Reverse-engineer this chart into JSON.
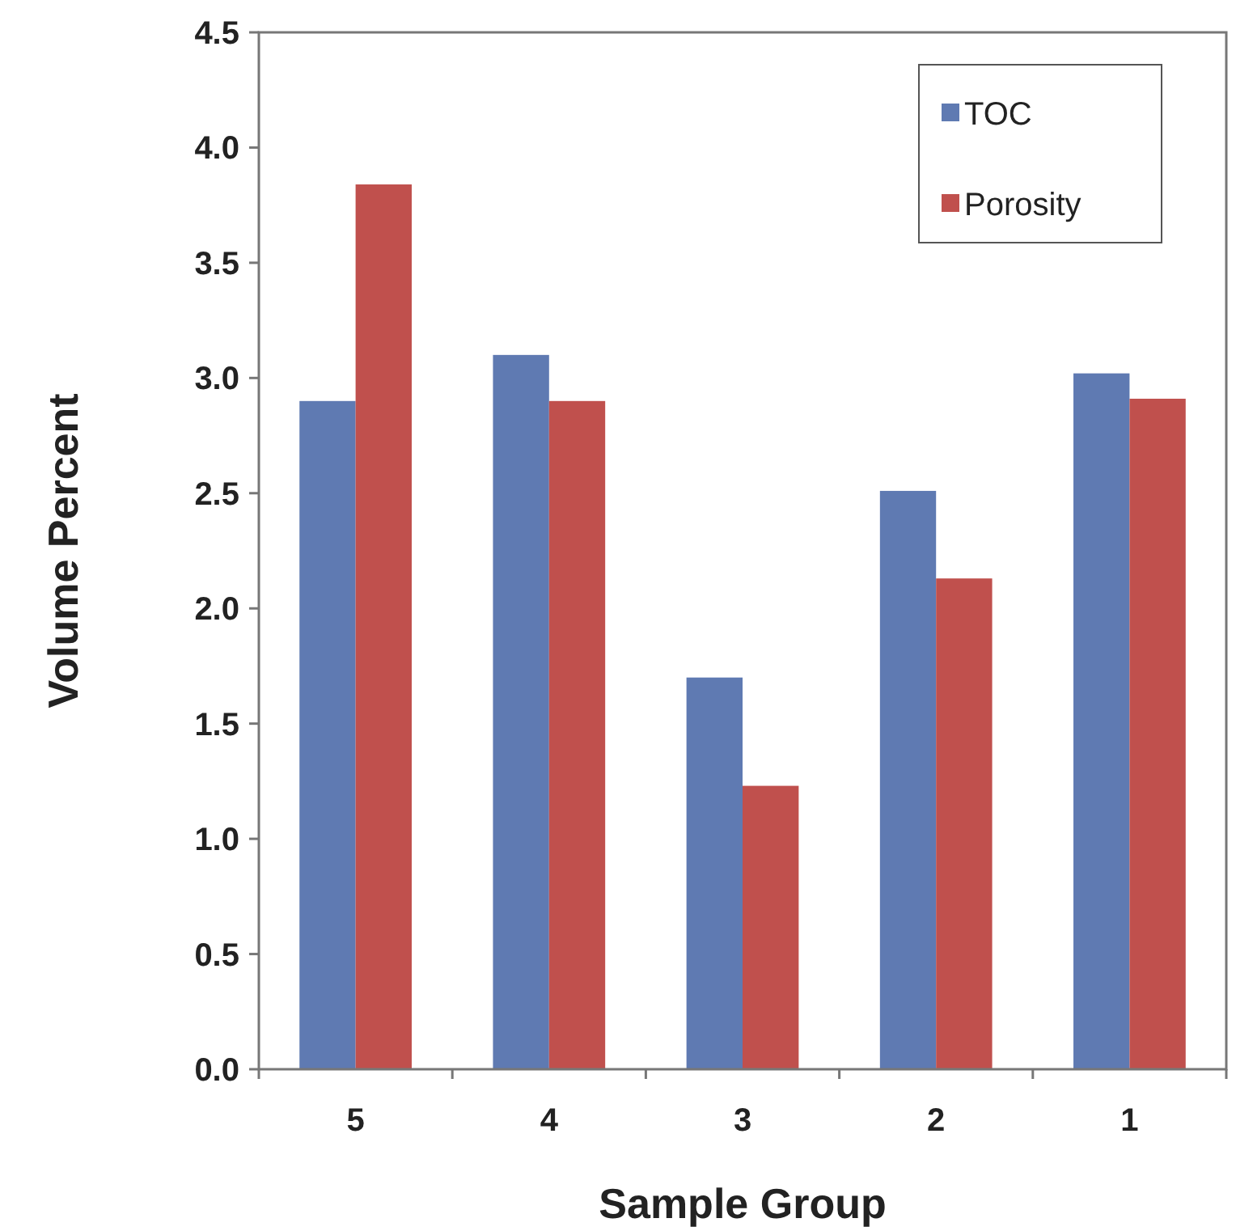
{
  "chart_data": {
    "type": "bar",
    "xlabel": "Sample Group",
    "ylabel": "Volume Percent",
    "categories": [
      "5",
      "4",
      "3",
      "2",
      "1"
    ],
    "series": [
      {
        "name": "TOC",
        "color": "#5f7ab2",
        "values": [
          2.9,
          3.1,
          1.7,
          2.51,
          3.02
        ]
      },
      {
        "name": "Porosity",
        "color": "#c0504d",
        "values": [
          3.84,
          2.9,
          1.23,
          2.13,
          2.91
        ]
      }
    ],
    "ylim": [
      0,
      4.5
    ],
    "yticks": [
      {
        "value": 0,
        "label": "0.0"
      },
      0.5,
      {
        "value": 1,
        "label": "1.0"
      },
      1.5,
      {
        "value": 2,
        "label": "2.0"
      },
      2.5,
      {
        "value": 3,
        "label": "3.0"
      },
      3.5,
      {
        "value": 4,
        "label": "4.0"
      },
      4.5
    ],
    "grid": false,
    "legend": "top right"
  }
}
